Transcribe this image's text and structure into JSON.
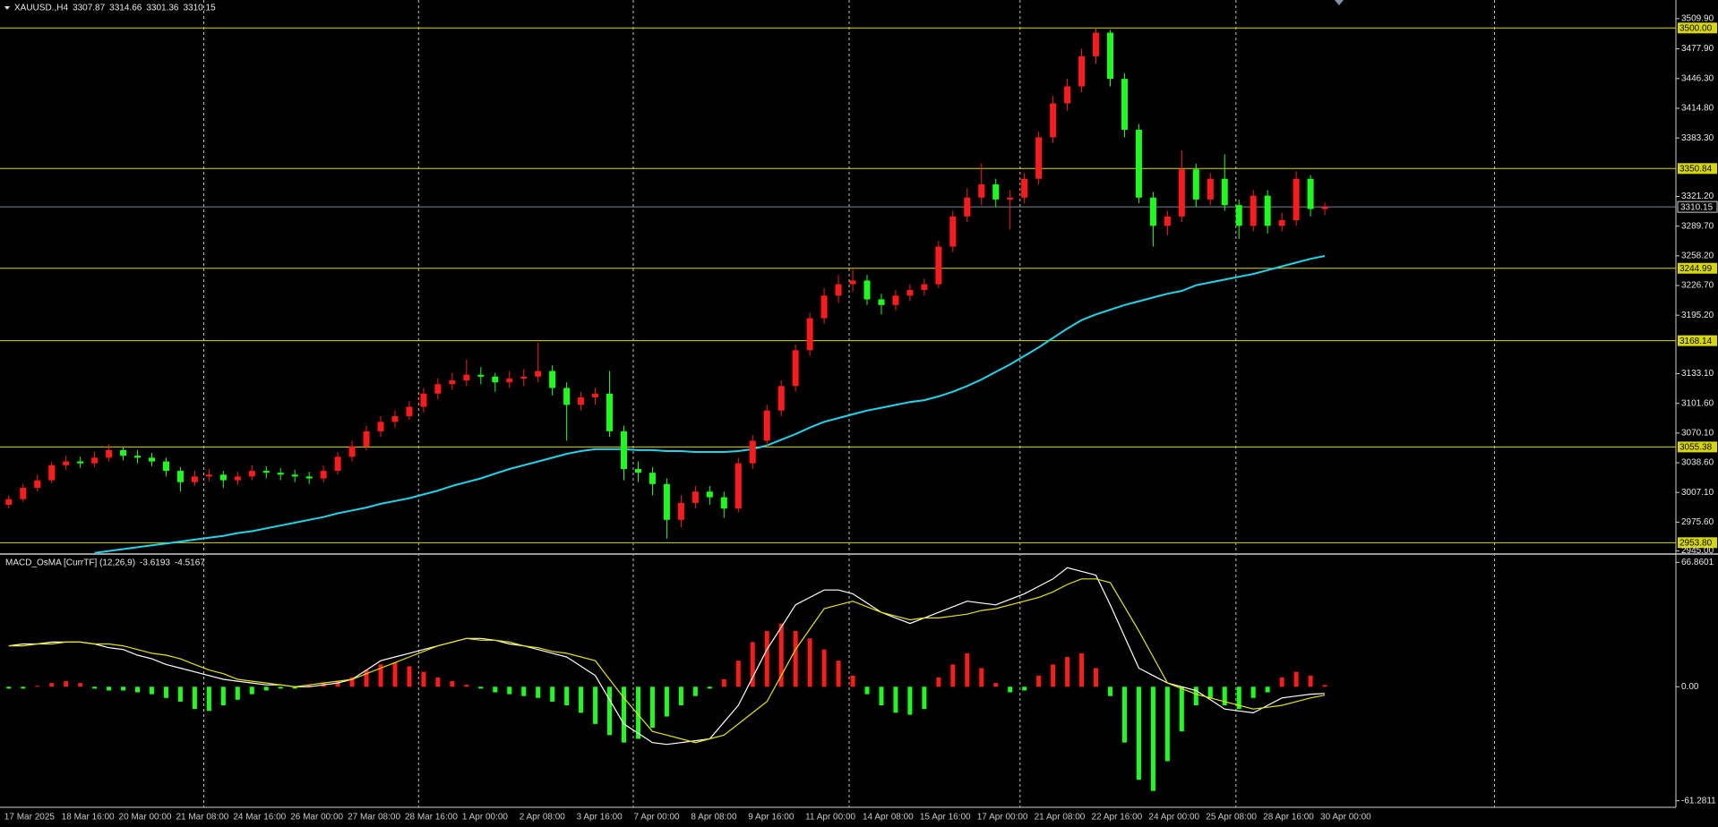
{
  "chart_data": [
    {
      "type": "candlestick",
      "title": "XAUUSD.,H4",
      "open": [
        2994,
        3000,
        3012,
        3020,
        3036,
        3040,
        3038,
        3044,
        3052,
        3046,
        3044,
        3040,
        3030,
        3018,
        3024,
        3026,
        3020,
        3024,
        3030,
        3028,
        3026,
        3024,
        3022,
        3030,
        3045,
        3056,
        3072,
        3082,
        3088,
        3098,
        3112,
        3122,
        3126,
        3132,
        3130,
        3124,
        3128,
        3130,
        3136,
        3118,
        3100,
        3108,
        3112,
        3072,
        3032,
        3028,
        3016,
        2978,
        2996,
        3008,
        3002,
        2990,
        3038,
        3062,
        3094,
        3120,
        3158,
        3192,
        3216,
        3228,
        3232,
        3212,
        3206,
        3216,
        3222,
        3228,
        3268,
        3300,
        3320,
        3334,
        3318,
        3320,
        3340,
        3384,
        3420,
        3438,
        3470,
        3495,
        3446,
        3392,
        3320,
        3290,
        3300,
        3350,
        3318,
        3340,
        3312,
        3290,
        3322,
        3290,
        3296,
        3340,
        3307.87
      ],
      "high": [
        3004,
        3016,
        3026,
        3040,
        3046,
        3045,
        3050,
        3058,
        3056,
        3052,
        3049,
        3044,
        3034,
        3030,
        3032,
        3030,
        3029,
        3036,
        3035,
        3033,
        3031,
        3029,
        3036,
        3050,
        3062,
        3078,
        3088,
        3094,
        3104,
        3118,
        3128,
        3134,
        3148,
        3140,
        3134,
        3136,
        3138,
        3166,
        3142,
        3124,
        3114,
        3118,
        3136,
        3078,
        3040,
        3034,
        3022,
        3004,
        3014,
        3014,
        3008,
        3044,
        3068,
        3100,
        3126,
        3164,
        3198,
        3224,
        3238,
        3244,
        3238,
        3218,
        3222,
        3228,
        3234,
        3274,
        3306,
        3330,
        3356,
        3340,
        3328,
        3346,
        3390,
        3428,
        3446,
        3478,
        3500,
        3498,
        3452,
        3398,
        3326,
        3306,
        3370,
        3356,
        3346,
        3366,
        3318,
        3328,
        3328,
        3304,
        3348,
        3344,
        3314.66
      ],
      "low": [
        2990,
        2997,
        3008,
        3017,
        3031,
        3033,
        3034,
        3040,
        3041,
        3038,
        3035,
        3024,
        3008,
        3014,
        3019,
        3012,
        3015,
        3020,
        3022,
        3020,
        3018,
        3016,
        3018,
        3026,
        3040,
        3052,
        3066,
        3076,
        3084,
        3092,
        3106,
        3116,
        3120,
        3122,
        3114,
        3118,
        3120,
        3124,
        3110,
        3062,
        3094,
        3100,
        3066,
        3020,
        3018,
        3004,
        2958,
        2970,
        2990,
        2994,
        2980,
        2986,
        3032,
        3056,
        3088,
        3114,
        3152,
        3186,
        3208,
        3220,
        3206,
        3196,
        3200,
        3210,
        3216,
        3224,
        3262,
        3294,
        3312,
        3310,
        3286,
        3314,
        3334,
        3378,
        3412,
        3432,
        3462,
        3438,
        3384,
        3314,
        3268,
        3280,
        3294,
        3310,
        3312,
        3306,
        3276,
        3284,
        3282,
        3284,
        3290,
        3300,
        3301.36
      ],
      "close": [
        3000,
        3012,
        3020,
        3036,
        3040,
        3038,
        3044,
        3052,
        3046,
        3044,
        3040,
        3030,
        3018,
        3024,
        3026,
        3020,
        3024,
        3030,
        3028,
        3026,
        3024,
        3022,
        3030,
        3045,
        3056,
        3072,
        3082,
        3088,
        3098,
        3112,
        3122,
        3126,
        3132,
        3130,
        3124,
        3128,
        3130,
        3136,
        3118,
        3100,
        3108,
        3112,
        3072,
        3032,
        3028,
        3016,
        2978,
        2996,
        3008,
        3002,
        2990,
        3038,
        3062,
        3094,
        3120,
        3158,
        3192,
        3216,
        3228,
        3232,
        3212,
        3206,
        3216,
        3222,
        3228,
        3268,
        3300,
        3320,
        3334,
        3318,
        3320,
        3340,
        3384,
        3420,
        3438,
        3470,
        3495,
        3446,
        3392,
        3320,
        3290,
        3300,
        3350,
        3318,
        3340,
        3312,
        3290,
        3322,
        3290,
        3296,
        3340,
        3307.87,
        3310.15
      ],
      "up_color": "#ff1a1a",
      "down_color": "#1aff1a",
      "moving_average": {
        "color": "#1ed6ec",
        "values": [
          null,
          null,
          null,
          null,
          null,
          null,
          2943,
          2945,
          2947,
          2949,
          2951,
          2953,
          2955,
          2957,
          2959,
          2961,
          2964,
          2966,
          2969,
          2972,
          2975,
          2978,
          2981,
          2985,
          2988,
          2991,
          2995,
          2998,
          3001,
          3005,
          3009,
          3014,
          3018,
          3022,
          3027,
          3032,
          3036,
          3040,
          3044,
          3048,
          3051,
          3053,
          3053,
          3053,
          3052,
          3052,
          3051,
          3051,
          3050,
          3050,
          3050,
          3051,
          3053,
          3057,
          3063,
          3069,
          3076,
          3082,
          3086,
          3090,
          3094,
          3097,
          3100,
          3103,
          3105,
          3109,
          3114,
          3120,
          3127,
          3135,
          3143,
          3152,
          3161,
          3171,
          3181,
          3190,
          3196,
          3201,
          3206,
          3210,
          3214,
          3218,
          3221,
          3227,
          3230,
          3233,
          3236,
          3239,
          3243,
          3247,
          3251,
          3255,
          3258
        ]
      },
      "levels": {
        "color": "#d8d800",
        "values": [
          {
            "value": 3500,
            "label": "3500.00"
          },
          3350.84,
          3244.99,
          3168.14,
          3055.38,
          {
            "value": 2953.8,
            "label": "2953.80"
          }
        ]
      },
      "current_price_color": "#7d8896",
      "ylim": [
        2942.7,
        3529.7
      ],
      "yticks": [
        {
          "value": 3509.9,
          "label": "3509.90"
        },
        {
          "value": 3477.9,
          "label": "3477.90"
        },
        {
          "value": 3446.3,
          "label": "3446.30"
        },
        {
          "value": 3414.8,
          "label": "3414.80"
        },
        {
          "value": 3383.3,
          "label": "3383.30"
        },
        {
          "value": 3321.2,
          "label": "3321.20"
        },
        {
          "value": 3289.7,
          "label": "3289.70"
        },
        {
          "value": 3258.2,
          "label": "3258.20"
        },
        {
          "value": 3226.7,
          "label": "3226.70"
        },
        {
          "value": 3195.2,
          "label": "3195.20"
        },
        {
          "value": 3133.1,
          "label": "3133.10"
        },
        {
          "value": 3101.6,
          "label": "3101.60"
        },
        {
          "value": 3070.1,
          "label": "3070.10"
        },
        {
          "value": 3038.6,
          "label": "3038.60"
        },
        {
          "value": 3007.1,
          "label": "3007.10"
        },
        {
          "value": 2975.6,
          "label": "2975.60"
        },
        {
          "value": 2945,
          "label": "2945.00"
        }
      ]
    },
    {
      "type": "macd",
      "title": "MACD_OsMA [CurrTF] (12,26,9)",
      "categories": [
        "17 Mar 2025",
        null,
        null,
        null,
        "18 Mar 16:00",
        null,
        null,
        null,
        "20 Mar 00:00",
        null,
        null,
        null,
        "21 Mar 08:00",
        null,
        null,
        null,
        "24 Mar 16:00",
        null,
        null,
        null,
        "26 Mar 00:00",
        null,
        null,
        null,
        "27 Mar 08:00",
        null,
        null,
        null,
        "28 Mar 16:00",
        null,
        null,
        null,
        "1 Apr 00:00",
        null,
        null,
        null,
        "2 Apr 08:00",
        null,
        null,
        null,
        "3 Apr 16:00",
        null,
        null,
        null,
        "7 Apr 00:00",
        null,
        null,
        null,
        "8 Apr 08:00",
        null,
        null,
        null,
        "9 Apr 16:00",
        null,
        null,
        null,
        "11 Apr 00:00",
        null,
        null,
        null,
        "14 Apr 08:00",
        null,
        null,
        null,
        "15 Apr 16:00",
        null,
        null,
        null,
        "17 Apr 00:00",
        null,
        null,
        null,
        "21 Apr 08:00",
        null,
        null,
        null,
        "22 Apr 16:00",
        null,
        null,
        null,
        "24 Apr 00:00",
        null,
        null,
        null,
        "25 Apr 08:00",
        null,
        null,
        null,
        "28 Apr 16:00",
        null,
        null,
        null,
        "30 Apr 00:00"
      ],
      "histogram": {
        "up_color": "#ff1a1a",
        "down_color": "#1aff1a",
        "values": [
          -1,
          -1,
          0.5,
          2,
          3,
          2,
          -1,
          -2,
          -2,
          -3,
          -4,
          -6,
          -8,
          -12,
          -13,
          -10,
          -7,
          -4,
          -2,
          -1,
          -1,
          1,
          2,
          3,
          5,
          9,
          12,
          13,
          11,
          8,
          5,
          3,
          1,
          -1,
          -3,
          -4,
          -5,
          -6,
          -8,
          -10,
          -14,
          -20,
          -26,
          -30,
          -28,
          -22,
          -16,
          -10,
          -5,
          -1,
          4,
          14,
          24,
          30,
          34,
          30,
          26,
          20,
          14,
          6,
          -4,
          -10,
          -14,
          -15,
          -12,
          5,
          12,
          18,
          10,
          2,
          -3,
          -2,
          6,
          12,
          16,
          18,
          10,
          -5,
          -30,
          -50,
          -56,
          -40,
          -24,
          -10,
          -6,
          -10,
          -12,
          -6,
          -3,
          5,
          8,
          6,
          0.8974
        ]
      },
      "macd": {
        "color": "#ffffff",
        "values": [
          22,
          23,
          23,
          24,
          24,
          24,
          23,
          21,
          20,
          17,
          15,
          12,
          10,
          8,
          6,
          4,
          3,
          2,
          1,
          1,
          0,
          0,
          1,
          2,
          4,
          9,
          14,
          16,
          18,
          20,
          22,
          24,
          26,
          26,
          25,
          23,
          22,
          20,
          18,
          16,
          11,
          6,
          -7,
          -20,
          -25,
          -30,
          -31,
          -30,
          -29,
          -28,
          -19,
          -10,
          5,
          20,
          32,
          44,
          48,
          52,
          52,
          50,
          45,
          40,
          37,
          34,
          37,
          40,
          43,
          46,
          45,
          44,
          47,
          50,
          54,
          58,
          64,
          62,
          60,
          44,
          27,
          10,
          6,
          2,
          0,
          -2,
          -7,
          -12,
          -13,
          -14,
          -10,
          -6,
          -5,
          -4,
          -3.6193
        ]
      },
      "signal": {
        "color": "#e6e600",
        "values": [
          22,
          22,
          23,
          23,
          24,
          24,
          23,
          23,
          22,
          20,
          18,
          17,
          15,
          12,
          9,
          7,
          4,
          3,
          2,
          1,
          0,
          1,
          2,
          3,
          4,
          7,
          10,
          13,
          16,
          19,
          22,
          24,
          26,
          25,
          25,
          24,
          22,
          21,
          19,
          18,
          16,
          14,
          4,
          -6,
          -15,
          -24,
          -26,
          -28,
          -30,
          -28,
          -26,
          -20,
          -14,
          -8,
          6,
          20,
          31,
          42,
          44,
          46,
          43,
          40,
          38,
          36,
          37,
          37,
          38,
          39,
          41,
          42,
          44,
          46,
          48,
          51,
          55,
          58,
          58,
          56,
          43,
          30,
          16,
          2,
          -1,
          -4,
          -6,
          -8,
          -10,
          -12,
          -11,
          -10,
          -8,
          -6,
          -4.5167
        ]
      },
      "ylim": [
        -64.81,
        70.39
      ],
      "yticks": [
        66.8601,
        {
          "value": 0,
          "label": "0.00"
        },
        -61.2811
      ]
    }
  ]
}
